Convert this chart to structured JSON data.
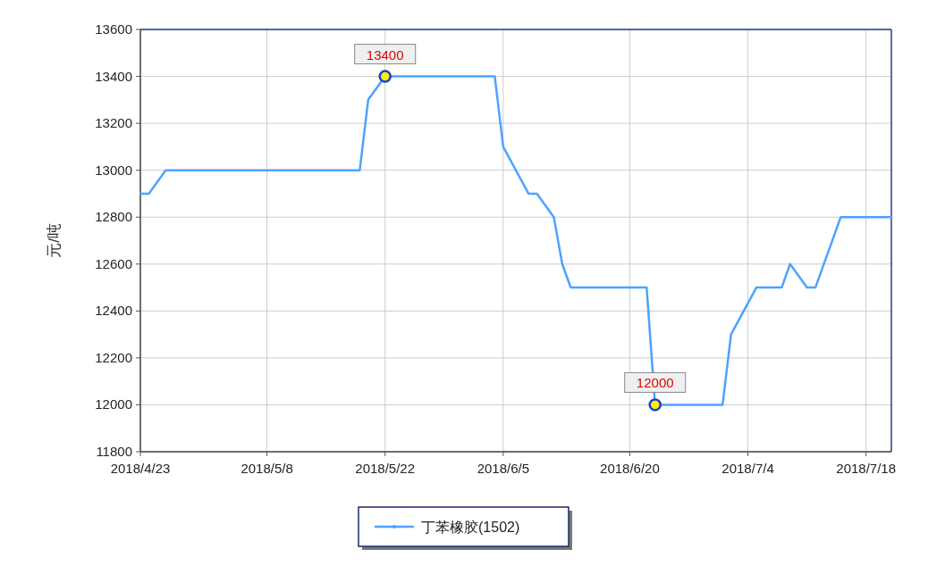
{
  "chart_data": {
    "type": "line",
    "ylabel": "元/吨",
    "x": [
      "2018-04-23",
      "2018-04-24",
      "2018-04-26",
      "2018-05-19",
      "2018-05-20",
      "2018-05-22",
      "2018-06-04",
      "2018-06-05",
      "2018-06-08",
      "2018-06-09",
      "2018-06-11",
      "2018-06-12",
      "2018-06-13",
      "2018-06-22",
      "2018-06-23",
      "2018-07-01",
      "2018-07-02",
      "2018-07-05",
      "2018-07-08",
      "2018-07-09",
      "2018-07-11",
      "2018-07-12",
      "2018-07-15",
      "2018-07-21"
    ],
    "series": [
      {
        "name": "丁苯橡胶(1502)",
        "color": "#4da3ff",
        "values": [
          12900,
          12900,
          13000,
          13000,
          13300,
          13400,
          13400,
          13100,
          12900,
          12900,
          12800,
          12600,
          12500,
          12500,
          12000,
          12000,
          12300,
          12500,
          12500,
          12600,
          12500,
          12500,
          12800,
          12800
        ]
      }
    ],
    "xlim": [
      "2018-04-23",
      "2018-07-21"
    ],
    "xticks": [
      {
        "value": "2018-04-23",
        "label": "2018/4/23"
      },
      {
        "value": "2018-05-08",
        "label": "2018/5/8"
      },
      {
        "value": "2018-05-22",
        "label": "2018/5/22"
      },
      {
        "value": "2018-06-05",
        "label": "2018/6/5"
      },
      {
        "value": "2018-06-20",
        "label": "2018/6/20"
      },
      {
        "value": "2018-07-04",
        "label": "2018/7/4"
      },
      {
        "value": "2018-07-18",
        "label": "2018/7/18"
      }
    ],
    "ylim": [
      11800,
      13600
    ],
    "yticks": [
      11800,
      12000,
      12200,
      12400,
      12600,
      12800,
      13000,
      13200,
      13400,
      13600
    ],
    "annotations": [
      {
        "text": "13400",
        "x": "2018-05-22",
        "y": 13400
      },
      {
        "text": "12000",
        "x": "2018-06-23",
        "y": 12000
      }
    ],
    "grid": true,
    "legend": "bottom"
  }
}
